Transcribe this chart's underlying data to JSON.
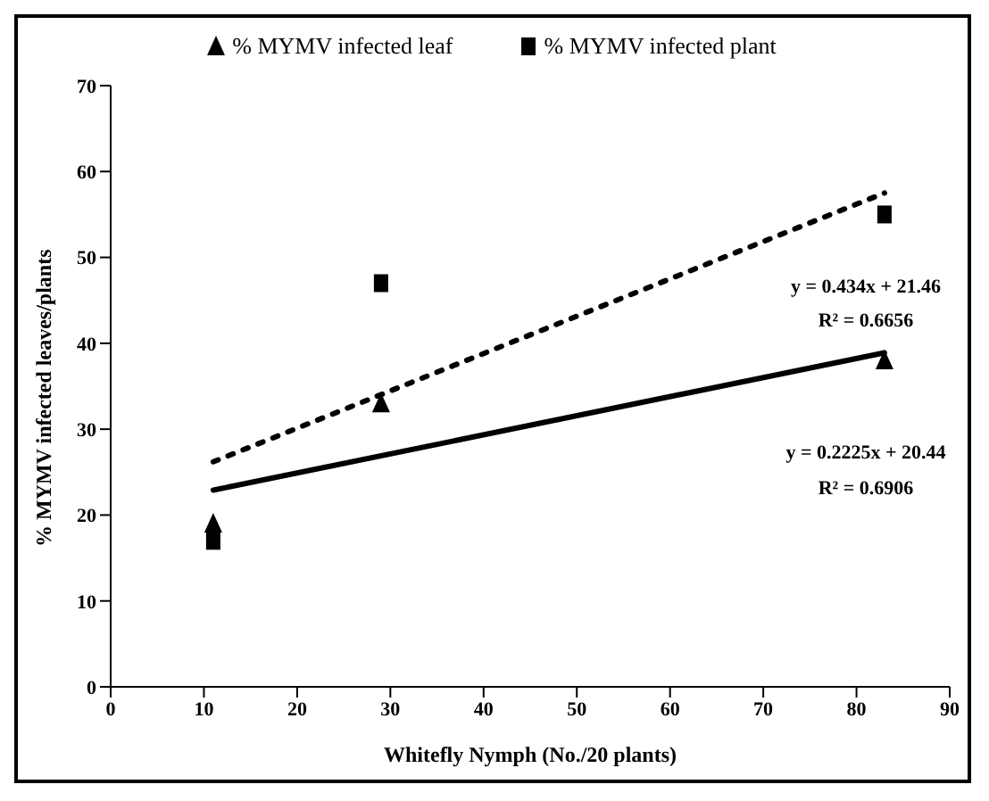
{
  "chart_data": {
    "type": "scatter",
    "xlabel": "Whitefly Nymph (No./20 plants)",
    "ylabel": "% MYMV infected leaves/plants",
    "xlim": [
      0,
      90
    ],
    "xticks": [
      0,
      10,
      20,
      30,
      40,
      50,
      60,
      70,
      80,
      90
    ],
    "ylim": [
      0,
      70
    ],
    "yticks": [
      0,
      10,
      20,
      30,
      40,
      50,
      60,
      70
    ],
    "grid": false,
    "legend": "top",
    "series": [
      {
        "name": "% MYMV infected leaf",
        "marker": "triangle",
        "color": "#000000",
        "x": [
          11,
          29,
          83
        ],
        "values": [
          19,
          33,
          38
        ]
      },
      {
        "name": "% MYMV infected plant",
        "marker": "square",
        "color": "#000000",
        "x": [
          11,
          29,
          83
        ],
        "values": [
          17,
          47,
          55
        ]
      },
      {
        "type": "line",
        "line_style": "solid",
        "marker": "none",
        "color": "#000000",
        "x": [
          11,
          83
        ],
        "values": [
          22.9,
          38.9
        ]
      },
      {
        "type": "line",
        "line_style": "dotted",
        "marker": "none",
        "color": "#000000",
        "x": [
          11,
          83
        ],
        "values": [
          26.2,
          57.5
        ]
      }
    ],
    "annotations": [
      "y = 0.434x + 21.46",
      "R² = 0.6656",
      "y = 0.2225x + 20.44",
      "R² = 0.6906"
    ]
  }
}
